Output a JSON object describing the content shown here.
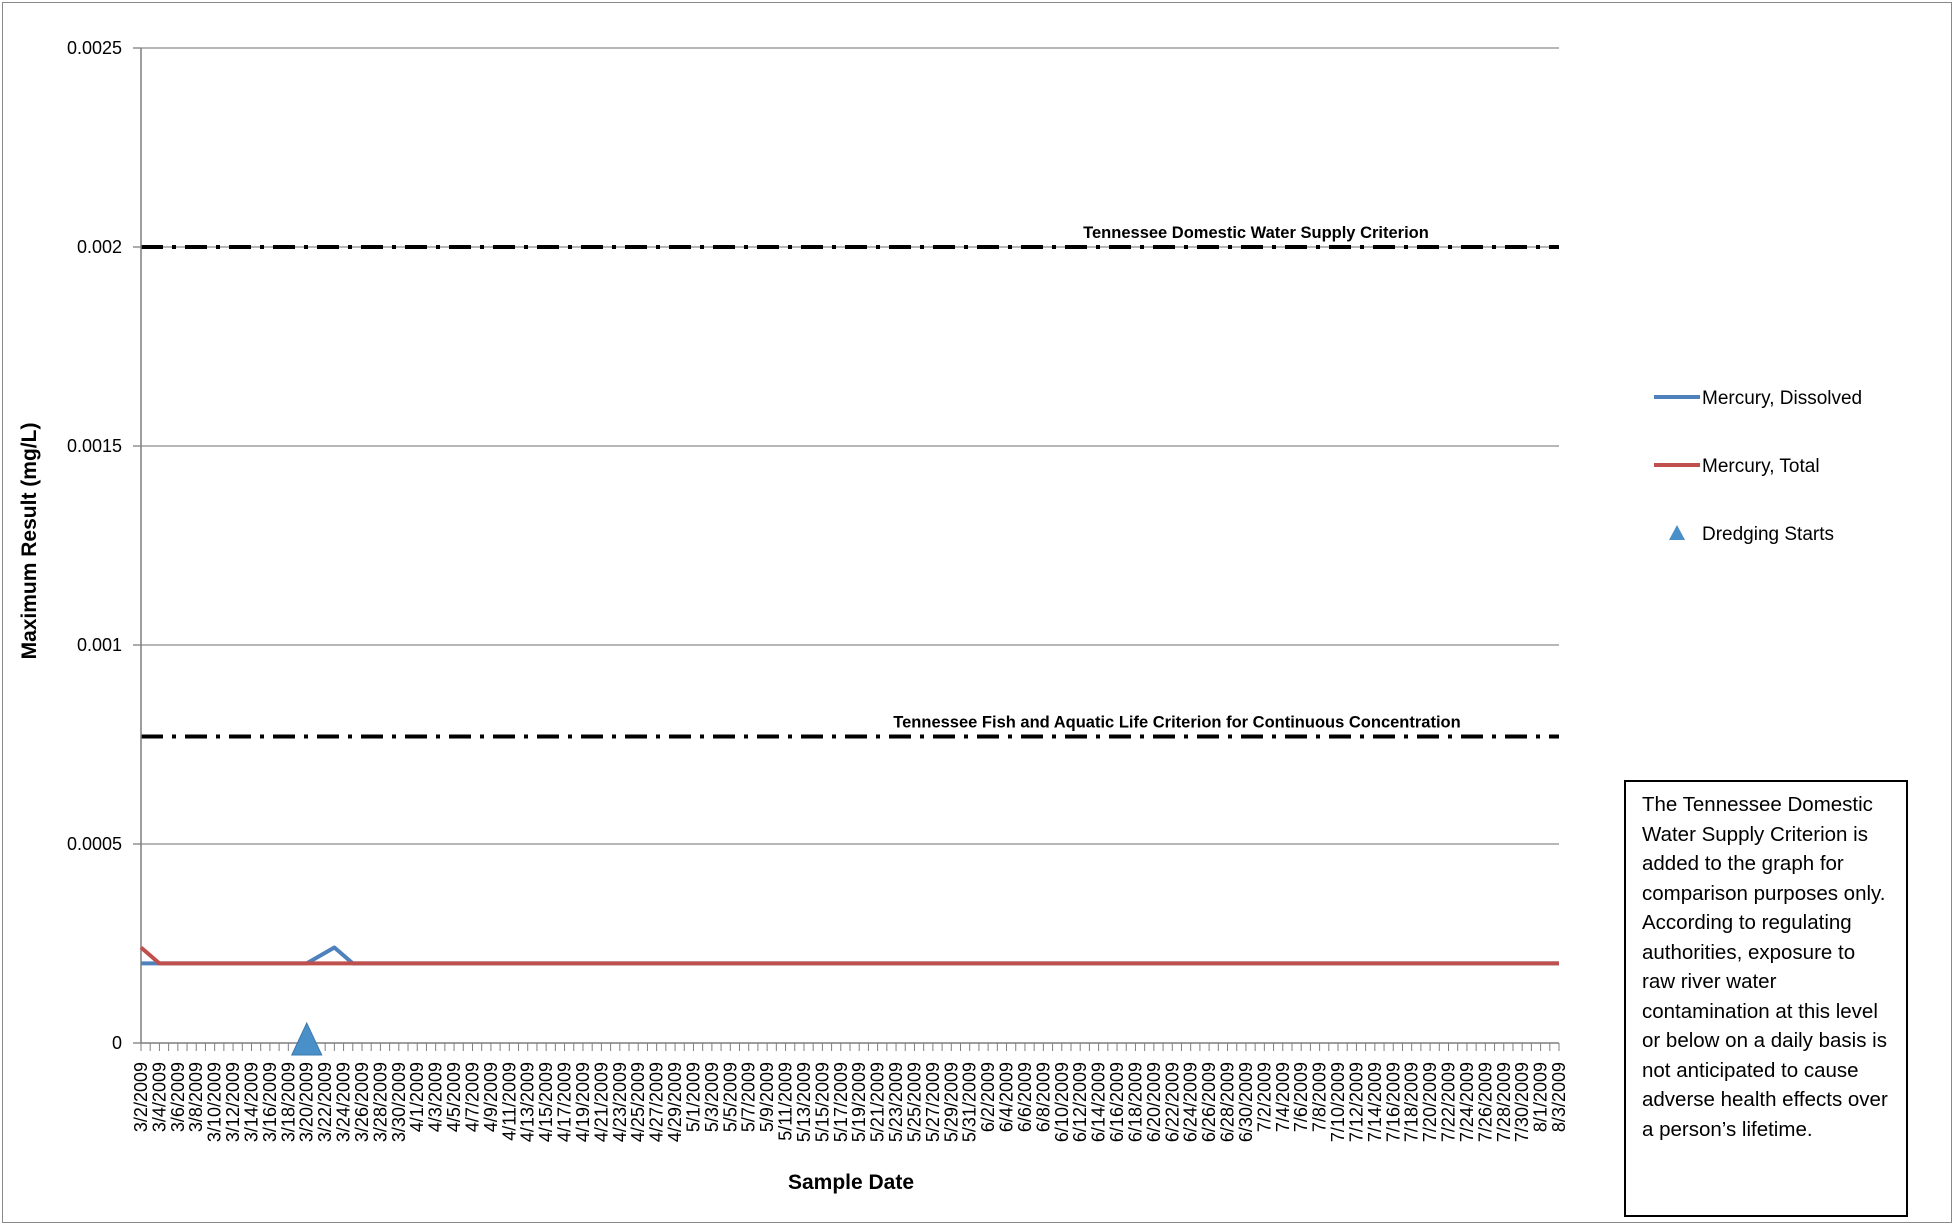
{
  "chart_data": {
    "type": "line",
    "title": "",
    "xlabel": "Sample Date",
    "ylabel": "Maximum Result (mg/L)",
    "ylim": [
      0,
      0.0025
    ],
    "y_ticks": [
      "0",
      "0.0005",
      "0.001",
      "0.0015",
      "0.002",
      "0.0025"
    ],
    "grid": true,
    "legend_position": "right",
    "x_categories": [
      "3/2/2009",
      "3/4/2009",
      "3/6/2009",
      "3/8/2009",
      "3/10/2009",
      "3/12/2009",
      "3/14/2009",
      "3/16/2009",
      "3/18/2009",
      "3/20/2009",
      "3/22/2009",
      "3/24/2009",
      "3/26/2009",
      "3/28/2009",
      "3/30/2009",
      "4/1/2009",
      "4/3/2009",
      "4/5/2009",
      "4/7/2009",
      "4/9/2009",
      "4/11/2009",
      "4/13/2009",
      "4/15/2009",
      "4/17/2009",
      "4/19/2009",
      "4/21/2009",
      "4/23/2009",
      "4/25/2009",
      "4/27/2009",
      "4/29/2009",
      "5/1/2009",
      "5/3/2009",
      "5/5/2009",
      "5/7/2009",
      "5/9/2009",
      "5/11/2009",
      "5/13/2009",
      "5/15/2009",
      "5/17/2009",
      "5/19/2009",
      "5/21/2009",
      "5/23/2009",
      "5/25/2009",
      "5/27/2009",
      "5/29/2009",
      "5/31/2009",
      "6/2/2009",
      "6/4/2009",
      "6/6/2009",
      "6/8/2009",
      "6/10/2009",
      "6/12/2009",
      "6/14/2009",
      "6/16/2009",
      "6/18/2009",
      "6/20/2009",
      "6/22/2009",
      "6/24/2009",
      "6/26/2009",
      "6/28/2009",
      "6/30/2009",
      "7/2/2009",
      "7/4/2009",
      "7/6/2009",
      "7/8/2009",
      "7/10/2009",
      "7/12/2009",
      "7/14/2009",
      "7/16/2009",
      "7/18/2009",
      "7/20/2009",
      "7/22/2009",
      "7/24/2009",
      "7/26/2009",
      "7/28/2009",
      "7/30/2009",
      "8/1/2009",
      "8/3/2009"
    ],
    "series": [
      {
        "name": "Mercury, Dissolved",
        "color": "#4f81bd",
        "points": [
          {
            "x": "3/2/2009",
            "y": 0.0002
          },
          {
            "x": "3/3/2009",
            "y": 0.0002
          },
          {
            "x": "3/20/2009",
            "y": 0.0002
          },
          {
            "x": "3/23/2009",
            "y": 0.00024
          },
          {
            "x": "3/25/2009",
            "y": 0.0002
          },
          {
            "x": "8/3/2009",
            "y": 0.0002
          }
        ]
      },
      {
        "name": "Mercury, Total",
        "color": "#c0504d",
        "points": [
          {
            "x": "3/2/2009",
            "y": 0.00024
          },
          {
            "x": "3/4/2009",
            "y": 0.0002
          },
          {
            "x": "8/3/2009",
            "y": 0.0002
          }
        ]
      },
      {
        "name": "Dredging Starts",
        "color": "#4a90c8",
        "marker": "triangle",
        "points": [
          {
            "x": "3/20/2009",
            "y": 0
          }
        ]
      }
    ],
    "reference_lines": [
      {
        "label": "Tennessee Domestic Water Supply Criterion",
        "y": 0.002,
        "color": "#000000",
        "style": "dash-dot"
      },
      {
        "label": "Tennessee Fish and Aquatic Life Criterion for Continuous Concentration",
        "y": 0.00077,
        "color": "#000000",
        "style": "dash-dot"
      }
    ],
    "note": "The Tennessee Domestic Water Supply Criterion is added to the graph for comparison purposes only.  According to regulating authorities, exposure to raw river water contamination at this level or below on a daily basis is not anticipated to cause adverse health effects over a person’s lifetime."
  }
}
